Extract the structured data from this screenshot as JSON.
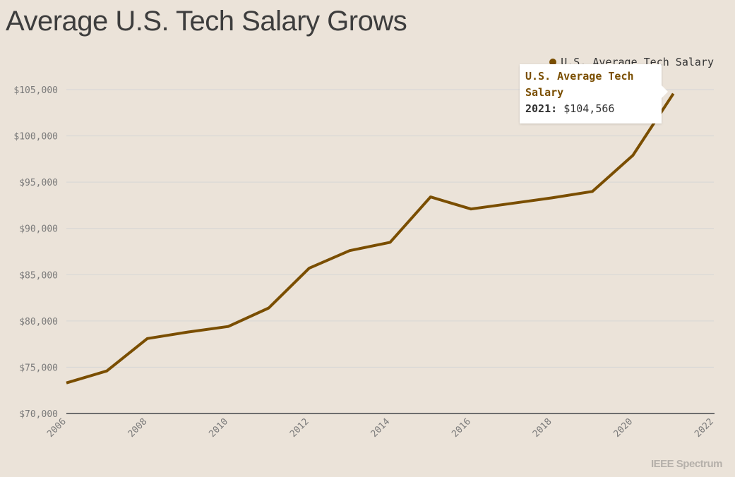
{
  "title": "Average U.S. Tech Salary Grows",
  "brand": "IEEE Spectrum",
  "colors": {
    "line": "#7a4e00",
    "grid": "#d6d6d6",
    "axis": "#6e6e6e",
    "background": "#ebe3d9"
  },
  "legend": {
    "label": "U.S. Average Tech Salary"
  },
  "tooltip": {
    "series": "U.S. Average Tech Salary",
    "year": "2021:",
    "value": "$104,566"
  },
  "chart_data": {
    "type": "line",
    "title": "Average U.S. Tech Salary Grows",
    "xlabel": "",
    "ylabel": "",
    "xlim": [
      2006,
      2022
    ],
    "ylim": [
      70000,
      105000
    ],
    "x_ticks": [
      2006,
      2008,
      2010,
      2012,
      2014,
      2016,
      2018,
      2020,
      2022
    ],
    "y_ticks": [
      70000,
      75000,
      80000,
      85000,
      90000,
      95000,
      100000,
      105000
    ],
    "y_tick_labels": [
      "$70,000",
      "$75,000",
      "$80,000",
      "$85,000",
      "$90,000",
      "$95,000",
      "$100,000",
      "$105,000"
    ],
    "grid": true,
    "legend_position": "top-right",
    "series": [
      {
        "name": "U.S. Average Tech Salary",
        "x": [
          2006,
          2007,
          2008,
          2009,
          2010,
          2011,
          2012,
          2013,
          2014,
          2015,
          2016,
          2017,
          2018,
          2019,
          2020,
          2021
        ],
        "values": [
          73300,
          74600,
          78100,
          78800,
          79400,
          81400,
          85700,
          87600,
          88500,
          93400,
          92100,
          92700,
          93300,
          94000,
          97900,
          104566
        ]
      }
    ]
  }
}
